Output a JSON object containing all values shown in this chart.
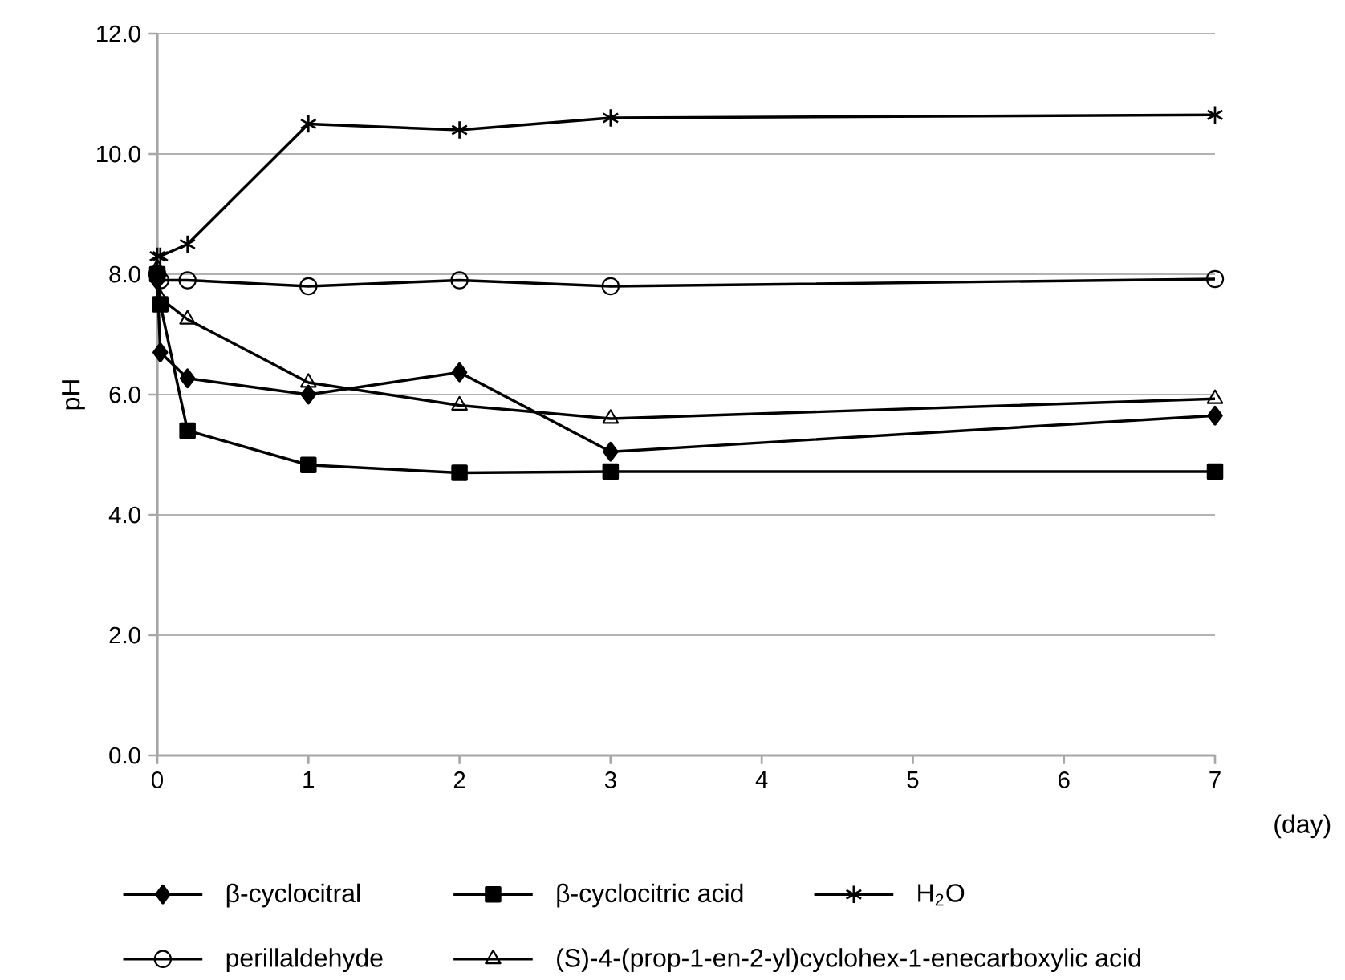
{
  "chart_data": {
    "type": "line",
    "xlabel": "(day)",
    "ylabel": "pH",
    "x": [
      0,
      0.02,
      0.2,
      1,
      2,
      3,
      7
    ],
    "series": [
      {
        "name": "β-cyclocitral",
        "color": "#000000",
        "marker": "diamond",
        "values": [
          7.9,
          6.7,
          6.27,
          6.0,
          6.37,
          5.05,
          5.65
        ]
      },
      {
        "name": "β-cyclocitric acid",
        "color": "#000000",
        "marker": "square",
        "values": [
          8.0,
          7.5,
          5.4,
          4.83,
          4.7,
          4.72,
          4.72
        ]
      },
      {
        "name": "H$_{2}$O",
        "color": "#000000",
        "marker": "cross",
        "values": [
          8.3,
          8.3,
          8.5,
          10.5,
          10.4,
          10.6,
          10.65
        ]
      },
      {
        "name": "perillaldehyde",
        "color": "#000000",
        "marker": "circle",
        "values": [
          8.0,
          7.9,
          7.9,
          7.8,
          7.9,
          7.8,
          7.92
        ]
      },
      {
        "name": "(S)-4-(prop-1-en-2-yl)cyclohex-1-enecarboxylic acid",
        "color": "#000000",
        "marker": "triangle",
        "values": [
          8.1,
          7.6,
          7.25,
          6.2,
          5.82,
          5.6,
          5.93
        ]
      }
    ],
    "xlim": [
      0,
      7
    ],
    "xticks": [
      0,
      1,
      2,
      3,
      4,
      5,
      6,
      7
    ],
    "ylim": [
      0,
      12
    ],
    "yticks": [
      {
        "value": 0,
        "label": "0.0"
      },
      {
        "value": 2,
        "label": "2.0"
      },
      {
        "value": 4,
        "label": "4.0"
      },
      {
        "value": 6,
        "label": "6.0"
      },
      {
        "value": 8,
        "label": "8.0"
      },
      {
        "value": 10,
        "label": "10.0"
      },
      {
        "value": 12,
        "label": "12.0"
      }
    ],
    "grid": "y",
    "legend": "bottom",
    "line_style": "solid"
  }
}
